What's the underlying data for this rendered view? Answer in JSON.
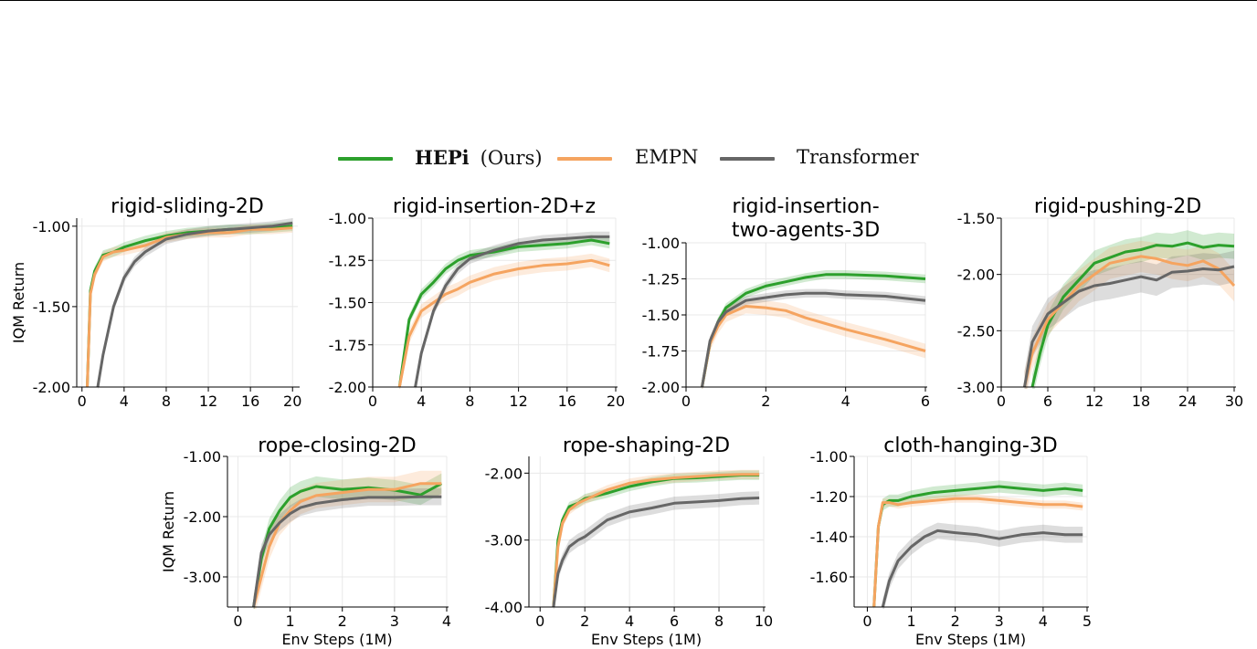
{
  "legend": {
    "items": [
      {
        "name": "HEPi",
        "suffix": "(Ours)",
        "color": "#2ca02c"
      },
      {
        "name": "EMPN",
        "suffix": "",
        "color": "#f5a460"
      },
      {
        "name": "Transformer",
        "suffix": "",
        "color": "#666666"
      }
    ]
  },
  "chart_data": [
    {
      "type": "line",
      "title": [
        "rigid-sliding-2D"
      ],
      "xlabel": "",
      "ylabel": "IQM Return",
      "xlim": [
        -0.5,
        20.5
      ],
      "ylim": [
        -2.0,
        -0.95
      ],
      "xticks": [
        0,
        4,
        8,
        12,
        16,
        20
      ],
      "xtick_labels": [
        "0",
        "4",
        "8",
        "12",
        "16",
        "20"
      ],
      "yticks": [
        -2.0,
        -1.5,
        -1.0
      ],
      "ytick_labels": [
        "-2.00",
        "-1.50",
        "-1.00"
      ],
      "series": [
        {
          "name": "HEPi",
          "x": [
            0.5,
            0.8,
            1.2,
            2,
            3,
            4,
            6,
            8,
            10,
            12,
            14,
            16,
            18,
            20
          ],
          "y": [
            -2.0,
            -1.4,
            -1.28,
            -1.18,
            -1.16,
            -1.13,
            -1.09,
            -1.06,
            -1.04,
            -1.03,
            -1.02,
            -1.02,
            -1.01,
            -1.0
          ],
          "band": 0.03
        },
        {
          "name": "EMPN",
          "x": [
            0.5,
            0.8,
            1.2,
            2,
            3,
            4,
            6,
            8,
            10,
            12,
            14,
            16,
            18,
            20
          ],
          "y": [
            -2.0,
            -1.42,
            -1.3,
            -1.19,
            -1.16,
            -1.15,
            -1.12,
            -1.07,
            -1.05,
            -1.04,
            -1.04,
            -1.02,
            -1.02,
            -1.01
          ],
          "band": 0.03
        },
        {
          "name": "Transformer",
          "x": [
            1.5,
            2,
            3,
            4,
            5,
            6,
            8,
            10,
            12,
            14,
            16,
            18,
            20
          ],
          "y": [
            -2.0,
            -1.8,
            -1.5,
            -1.32,
            -1.22,
            -1.16,
            -1.08,
            -1.05,
            -1.03,
            -1.02,
            -1.01,
            -1.0,
            -0.98
          ],
          "band": 0.03
        }
      ]
    },
    {
      "type": "line",
      "title": [
        "rigid-insertion-2D+z"
      ],
      "xlabel": "",
      "ylabel": "",
      "xlim": [
        0,
        20
      ],
      "ylim": [
        -2.0,
        -1.0
      ],
      "xticks": [
        0,
        4,
        8,
        12,
        16,
        20
      ],
      "xtick_labels": [
        "0",
        "4",
        "8",
        "12",
        "16",
        "20"
      ],
      "yticks": [
        -2.0,
        -1.75,
        -1.5,
        -1.25,
        -1.0
      ],
      "ytick_labels": [
        "-2.00",
        "-1.75",
        "-1.50",
        "-1.25",
        "-1.00"
      ],
      "series": [
        {
          "name": "HEPi",
          "x": [
            2.2,
            3,
            4,
            5,
            6,
            7,
            8,
            10,
            12,
            14,
            16,
            18,
            19.5
          ],
          "y": [
            -2.0,
            -1.6,
            -1.45,
            -1.38,
            -1.3,
            -1.25,
            -1.22,
            -1.2,
            -1.17,
            -1.16,
            -1.15,
            -1.13,
            -1.15
          ],
          "band": 0.03
        },
        {
          "name": "EMPN",
          "x": [
            2.2,
            3,
            4,
            5,
            6,
            7,
            8,
            10,
            12,
            14,
            16,
            18,
            19.5
          ],
          "y": [
            -2.0,
            -1.7,
            -1.55,
            -1.5,
            -1.45,
            -1.42,
            -1.38,
            -1.33,
            -1.3,
            -1.28,
            -1.27,
            -1.25,
            -1.28
          ],
          "band": 0.04
        },
        {
          "name": "Transformer",
          "x": [
            3.5,
            4,
            5,
            6,
            7,
            8,
            10,
            12,
            14,
            16,
            18,
            19.5
          ],
          "y": [
            -2.0,
            -1.8,
            -1.55,
            -1.4,
            -1.3,
            -1.24,
            -1.19,
            -1.15,
            -1.13,
            -1.12,
            -1.11,
            -1.11
          ],
          "band": 0.03
        }
      ]
    },
    {
      "type": "line",
      "title": [
        "rigid-insertion-",
        "two-agents-3D"
      ],
      "xlabel": "",
      "ylabel": "",
      "xlim": [
        0,
        6
      ],
      "ylim": [
        -2.0,
        -1.0
      ],
      "xticks": [
        0,
        2,
        4,
        6
      ],
      "xtick_labels": [
        "0",
        "2",
        "4",
        "6"
      ],
      "yticks": [
        -2.0,
        -1.75,
        -1.5,
        -1.25,
        -1.0
      ],
      "ytick_labels": [
        "-2.00",
        "-1.75",
        "-1.50",
        "-1.25",
        "-1.00"
      ],
      "series": [
        {
          "name": "HEPi",
          "x": [
            0.4,
            0.6,
            0.8,
            1,
            1.5,
            2,
            2.5,
            3,
            3.5,
            4,
            5,
            6
          ],
          "y": [
            -2.0,
            -1.7,
            -1.55,
            -1.45,
            -1.35,
            -1.3,
            -1.27,
            -1.24,
            -1.22,
            -1.22,
            -1.23,
            -1.25
          ],
          "band": 0.03
        },
        {
          "name": "EMPN",
          "x": [
            0.4,
            0.6,
            0.8,
            1,
            1.5,
            2,
            2.5,
            3,
            3.5,
            4,
            5,
            6
          ],
          "y": [
            -2.0,
            -1.7,
            -1.58,
            -1.5,
            -1.44,
            -1.45,
            -1.47,
            -1.52,
            -1.56,
            -1.6,
            -1.67,
            -1.75
          ],
          "band": 0.05
        },
        {
          "name": "Transformer",
          "x": [
            0.4,
            0.6,
            0.8,
            1,
            1.5,
            2,
            2.5,
            3,
            3.5,
            4,
            5,
            6
          ],
          "y": [
            -2.0,
            -1.68,
            -1.55,
            -1.48,
            -1.4,
            -1.38,
            -1.36,
            -1.35,
            -1.35,
            -1.36,
            -1.37,
            -1.4
          ],
          "band": 0.03
        }
      ]
    },
    {
      "type": "line",
      "title": [
        "rigid-pushing-2D"
      ],
      "xlabel": "",
      "ylabel": "",
      "xlim": [
        0,
        30
      ],
      "ylim": [
        -3.0,
        -1.5
      ],
      "xticks": [
        0,
        6,
        12,
        18,
        24,
        30
      ],
      "xtick_labels": [
        "0",
        "6",
        "12",
        "18",
        "24",
        "30"
      ],
      "yticks": [
        -3.0,
        -2.5,
        -2.0,
        -1.5
      ],
      "ytick_labels": [
        "-3.00",
        "-2.50",
        "-2.00",
        "-1.50"
      ],
      "series": [
        {
          "name": "HEPi",
          "x": [
            4,
            5,
            6,
            8,
            10,
            12,
            14,
            16,
            18,
            20,
            22,
            24,
            26,
            28,
            30
          ],
          "y": [
            -3.0,
            -2.7,
            -2.45,
            -2.2,
            -2.05,
            -1.9,
            -1.85,
            -1.8,
            -1.78,
            -1.74,
            -1.75,
            -1.72,
            -1.76,
            -1.74,
            -1.75
          ],
          "band": 0.08
        },
        {
          "name": "EMPN",
          "x": [
            3,
            4,
            6,
            8,
            10,
            12,
            14,
            16,
            18,
            20,
            22,
            24,
            26,
            28,
            30
          ],
          "y": [
            -3.0,
            -2.7,
            -2.4,
            -2.25,
            -2.1,
            -2.0,
            -1.9,
            -1.87,
            -1.84,
            -1.86,
            -1.9,
            -1.92,
            -1.88,
            -1.95,
            -2.1
          ],
          "band": 0.1
        },
        {
          "name": "Transformer",
          "x": [
            3,
            4,
            6,
            8,
            10,
            12,
            14,
            16,
            18,
            20,
            22,
            24,
            26,
            28,
            30
          ],
          "y": [
            -3.0,
            -2.6,
            -2.35,
            -2.25,
            -2.15,
            -2.1,
            -2.08,
            -2.05,
            -2.02,
            -2.05,
            -1.98,
            -1.97,
            -1.95,
            -1.96,
            -1.93
          ],
          "band": 0.1
        }
      ]
    },
    {
      "type": "line",
      "title": [
        "rope-closing-2D"
      ],
      "xlabel": "Env Steps (1M)",
      "ylabel": "IQM Return",
      "xlim": [
        -0.2,
        4.0
      ],
      "ylim": [
        -3.5,
        -1.0
      ],
      "xticks": [
        0,
        1,
        2,
        3,
        4
      ],
      "xtick_labels": [
        "0",
        "1",
        "2",
        "3",
        "4"
      ],
      "yticks": [
        -3.0,
        -2.0,
        -1.0
      ],
      "ytick_labels": [
        "-3.00",
        "-2.00",
        "-1.00"
      ],
      "series": [
        {
          "name": "HEPi",
          "x": [
            0.3,
            0.45,
            0.6,
            0.8,
            1,
            1.2,
            1.5,
            2,
            2.5,
            3,
            3.5,
            3.9
          ],
          "y": [
            -3.5,
            -2.7,
            -2.2,
            -1.9,
            -1.68,
            -1.58,
            -1.5,
            -1.55,
            -1.52,
            -1.56,
            -1.64,
            -1.45
          ],
          "band": 0.12
        },
        {
          "name": "EMPN",
          "x": [
            0.3,
            0.45,
            0.6,
            0.8,
            1,
            1.2,
            1.5,
            2,
            2.5,
            3,
            3.5,
            3.9
          ],
          "y": [
            -3.5,
            -3.0,
            -2.5,
            -2.1,
            -1.9,
            -1.75,
            -1.65,
            -1.6,
            -1.55,
            -1.55,
            -1.45,
            -1.45
          ],
          "band": 0.15
        },
        {
          "name": "Transformer",
          "x": [
            0.3,
            0.45,
            0.6,
            0.8,
            1,
            1.2,
            1.5,
            2,
            2.5,
            3,
            3.5,
            3.9
          ],
          "y": [
            -3.5,
            -2.6,
            -2.3,
            -2.1,
            -1.95,
            -1.85,
            -1.78,
            -1.72,
            -1.68,
            -1.68,
            -1.67,
            -1.67
          ],
          "band": 0.1
        }
      ]
    },
    {
      "type": "line",
      "title": [
        "rope-shaping-2D"
      ],
      "xlabel": "Env Steps (1M)",
      "ylabel": "",
      "xlim": [
        -0.5,
        10.0
      ],
      "ylim": [
        -4.0,
        -1.75
      ],
      "xticks": [
        0,
        2,
        4,
        6,
        8,
        10
      ],
      "xtick_labels": [
        "0",
        "2",
        "4",
        "6",
        "8",
        "10"
      ],
      "yticks": [
        -4.0,
        -3.0,
        -2.0
      ],
      "ytick_labels": [
        "-4.00",
        "-3.00",
        "-2.00"
      ],
      "series": [
        {
          "name": "HEPi",
          "x": [
            0.6,
            0.8,
            1,
            1.3,
            1.7,
            2,
            3,
            4,
            5,
            6,
            7,
            8,
            9,
            9.8
          ],
          "y": [
            -4.0,
            -3.0,
            -2.7,
            -2.5,
            -2.45,
            -2.38,
            -2.3,
            -2.2,
            -2.13,
            -2.08,
            -2.07,
            -2.05,
            -2.03,
            -2.03
          ],
          "band": 0.05
        },
        {
          "name": "EMPN",
          "x": [
            0.6,
            0.8,
            1,
            1.3,
            1.7,
            2,
            3,
            4,
            5,
            6,
            7,
            8,
            9,
            9.8
          ],
          "y": [
            -4.0,
            -3.1,
            -2.75,
            -2.55,
            -2.45,
            -2.4,
            -2.25,
            -2.15,
            -2.1,
            -2.07,
            -2.05,
            -2.03,
            -2.02,
            -2.02
          ],
          "band": 0.05
        },
        {
          "name": "Transformer",
          "x": [
            0.6,
            0.8,
            1,
            1.3,
            1.7,
            2,
            3,
            4,
            5,
            6,
            7,
            8,
            9,
            9.8
          ],
          "y": [
            -4.0,
            -3.5,
            -3.3,
            -3.1,
            -3.0,
            -2.95,
            -2.7,
            -2.58,
            -2.52,
            -2.45,
            -2.43,
            -2.41,
            -2.38,
            -2.37
          ],
          "band": 0.07
        }
      ]
    },
    {
      "type": "line",
      "title": [
        "cloth-hanging-3D"
      ],
      "xlabel": "Env Steps (1M)",
      "ylabel": "",
      "xlim": [
        -0.3,
        5.0
      ],
      "ylim": [
        -1.75,
        -1.0
      ],
      "xticks": [
        0,
        1,
        2,
        3,
        4,
        5
      ],
      "xtick_labels": [
        "0",
        "1",
        "2",
        "3",
        "4",
        "5"
      ],
      "yticks": [
        -1.6,
        -1.4,
        -1.2,
        -1.0
      ],
      "ytick_labels": [
        "-1.60",
        "-1.40",
        "-1.20",
        "-1.00"
      ],
      "series": [
        {
          "name": "HEPi",
          "x": [
            0.15,
            0.25,
            0.35,
            0.5,
            0.7,
            1,
            1.5,
            2,
            2.5,
            3,
            3.5,
            4,
            4.5,
            4.9
          ],
          "y": [
            -1.75,
            -1.35,
            -1.24,
            -1.22,
            -1.22,
            -1.2,
            -1.18,
            -1.17,
            -1.16,
            -1.15,
            -1.16,
            -1.17,
            -1.16,
            -1.17
          ],
          "band": 0.03
        },
        {
          "name": "EMPN",
          "x": [
            0.15,
            0.25,
            0.35,
            0.5,
            0.7,
            1,
            1.5,
            2,
            2.5,
            3,
            3.5,
            4,
            4.5,
            4.9
          ],
          "y": [
            -1.75,
            -1.35,
            -1.23,
            -1.23,
            -1.24,
            -1.23,
            -1.22,
            -1.21,
            -1.21,
            -1.22,
            -1.23,
            -1.24,
            -1.24,
            -1.25
          ],
          "band": 0.02
        },
        {
          "name": "Transformer",
          "x": [
            0.35,
            0.5,
            0.7,
            1,
            1.3,
            1.6,
            2,
            2.5,
            3,
            3.5,
            4,
            4.5,
            4.9
          ],
          "y": [
            -1.75,
            -1.62,
            -1.52,
            -1.45,
            -1.4,
            -1.37,
            -1.38,
            -1.39,
            -1.41,
            -1.39,
            -1.38,
            -1.39,
            -1.39
          ],
          "band": 0.04
        }
      ]
    }
  ]
}
